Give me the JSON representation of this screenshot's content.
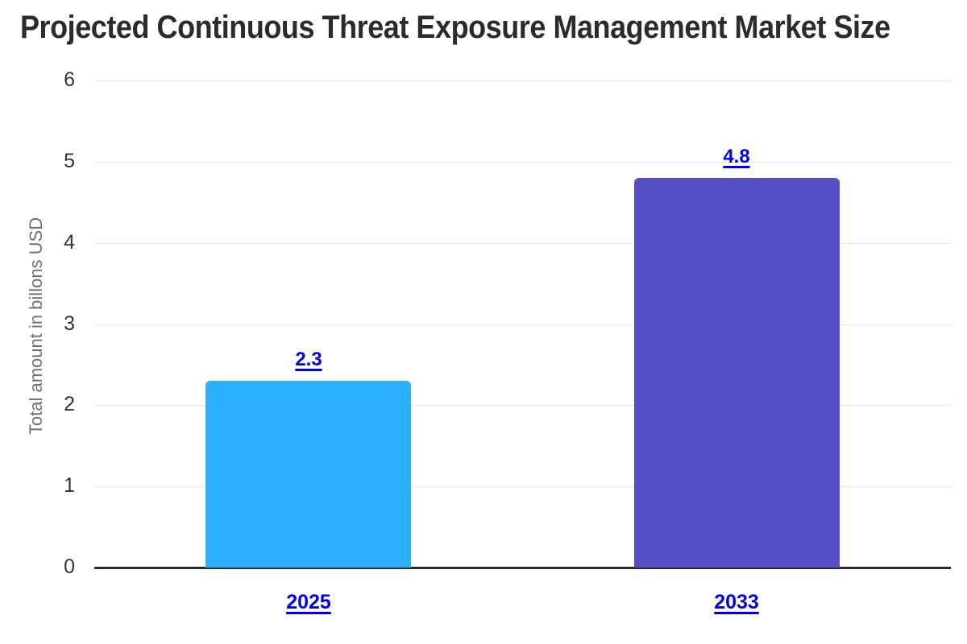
{
  "header": {
    "title": "Projected Continuous Threat Exposure Management Market Size"
  },
  "chart_data": {
    "type": "bar",
    "title": "Projected Continuous Threat Exposure Management Market Size",
    "categories": [
      "2025",
      "2033"
    ],
    "values": [
      2.3,
      4.8
    ],
    "data_labels": [
      "2.3",
      "4.8"
    ],
    "bar_colors": [
      "#2CAFFE",
      "#544FC5"
    ],
    "ylabel": "Total amount in billons USD",
    "xlabel": "",
    "ylim": [
      0,
      6
    ],
    "yticks": [
      0,
      1,
      2,
      3,
      4,
      5,
      6
    ],
    "grid": "horizontal-only",
    "legend": "none",
    "label_link_color": "#0000EE",
    "gridline_color": "#e6e6e6",
    "baseline_color": "#2b2b2b"
  }
}
